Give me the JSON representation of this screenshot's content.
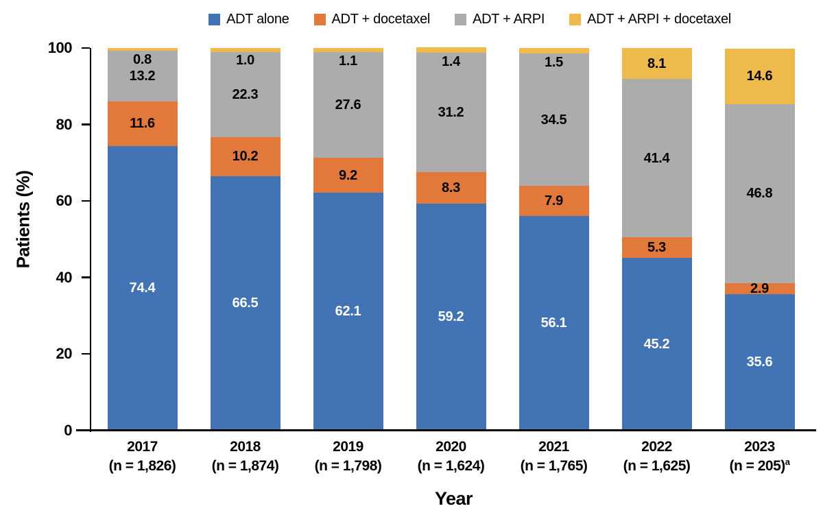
{
  "chart_data": {
    "type": "bar",
    "variant": "stacked-percent",
    "title": "",
    "xlabel": "Year",
    "ylabel": "Patients (%)",
    "ylim": [
      0,
      100
    ],
    "yticks": [
      0,
      20,
      40,
      60,
      80,
      100
    ],
    "grid": "off",
    "legend_position": "top-center",
    "categories": [
      "2017",
      "2018",
      "2019",
      "2020",
      "2021",
      "2022",
      "2023"
    ],
    "category_sublabels": [
      "(n = 1,826)",
      "(n = 1,874)",
      "(n = 1,798)",
      "(n = 1,624)",
      "(n = 1,765)",
      "(n = 1,625)",
      "(n = 205)"
    ],
    "category_sublabel_superscripts": [
      "",
      "",
      "",
      "",
      "",
      "",
      "a"
    ],
    "series": [
      {
        "name": "ADT alone",
        "color": "#4173b5",
        "label_color": "#ffffff",
        "values": [
          74.4,
          66.5,
          62.1,
          59.2,
          56.1,
          45.2,
          35.6
        ],
        "labels": [
          "74.4",
          "66.5",
          "62.1",
          "59.2",
          "56.1",
          "45.2",
          "35.6"
        ]
      },
      {
        "name": "ADT + docetaxel",
        "color": "#e2793b",
        "label_color": "#000000",
        "values": [
          11.6,
          10.2,
          9.2,
          8.3,
          7.9,
          5.3,
          2.9
        ],
        "labels": [
          "11.6",
          "10.2",
          "9.2",
          "8.3",
          "7.9",
          "5.3",
          "2.9"
        ]
      },
      {
        "name": "ADT + ARPI",
        "color": "#acacac",
        "label_color": "#000000",
        "values": [
          13.2,
          22.3,
          27.6,
          31.2,
          34.5,
          41.4,
          46.8
        ],
        "labels": [
          "13.2",
          "22.3",
          "27.6",
          "31.2",
          "34.5",
          "41.4",
          "46.8"
        ]
      },
      {
        "name": "ADT + ARPI + docetaxel",
        "color": "#efba4c",
        "label_color": "#000000",
        "values": [
          0.8,
          1.0,
          1.1,
          1.4,
          1.5,
          8.1,
          14.6
        ],
        "labels": [
          "0.8",
          "1.0",
          "1.1",
          "1.4",
          "1.5",
          "8.1",
          "14.6"
        ]
      }
    ],
    "axis_color": "#000000"
  }
}
